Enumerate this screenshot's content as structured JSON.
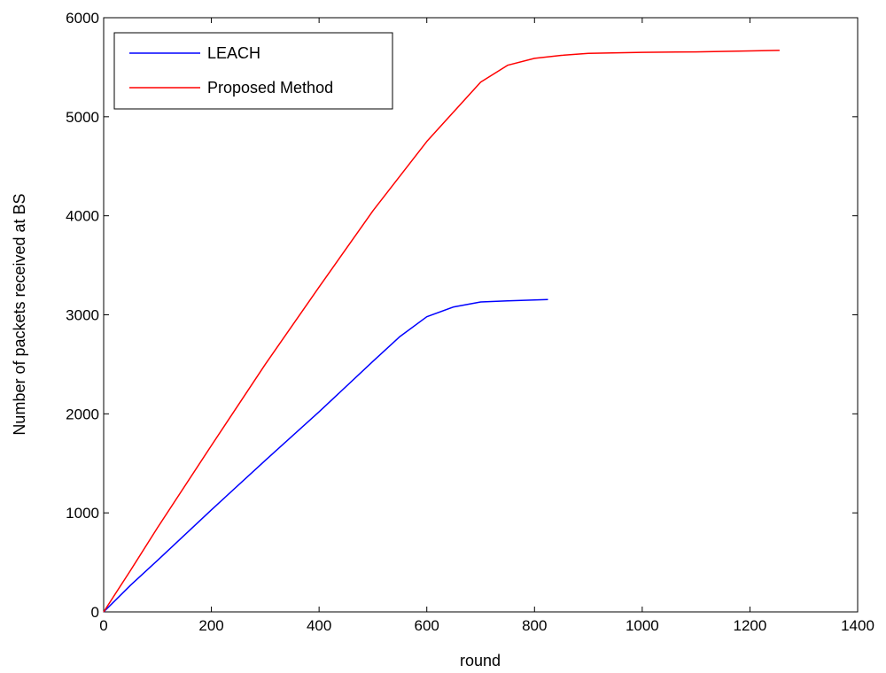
{
  "chart_data": {
    "type": "line",
    "title": "",
    "xlabel": "round",
    "ylabel": "Number of packets received at BS",
    "xlim": [
      0,
      1400
    ],
    "ylim": [
      0,
      6000
    ],
    "xticks": [
      0,
      200,
      400,
      600,
      800,
      1000,
      1200,
      1400
    ],
    "yticks": [
      0,
      1000,
      2000,
      3000,
      4000,
      5000,
      6000
    ],
    "grid": false,
    "legend_position": "top-left",
    "series": [
      {
        "name": "LEACH",
        "color": "#0000ff",
        "x": [
          0,
          50,
          100,
          200,
          300,
          400,
          500,
          550,
          600,
          650,
          700,
          750,
          800,
          825
        ],
        "y": [
          0,
          270,
          520,
          1030,
          1530,
          2020,
          2530,
          2780,
          2980,
          3080,
          3130,
          3140,
          3150,
          3155
        ]
      },
      {
        "name": "Proposed Method",
        "color": "#ff0000",
        "x": [
          0,
          50,
          100,
          200,
          300,
          400,
          500,
          600,
          650,
          700,
          750,
          800,
          850,
          900,
          1000,
          1100,
          1200,
          1255
        ],
        "y": [
          0,
          420,
          850,
          1680,
          2500,
          3280,
          4050,
          4750,
          5050,
          5350,
          5520,
          5590,
          5620,
          5640,
          5650,
          5655,
          5665,
          5670
        ]
      }
    ]
  }
}
